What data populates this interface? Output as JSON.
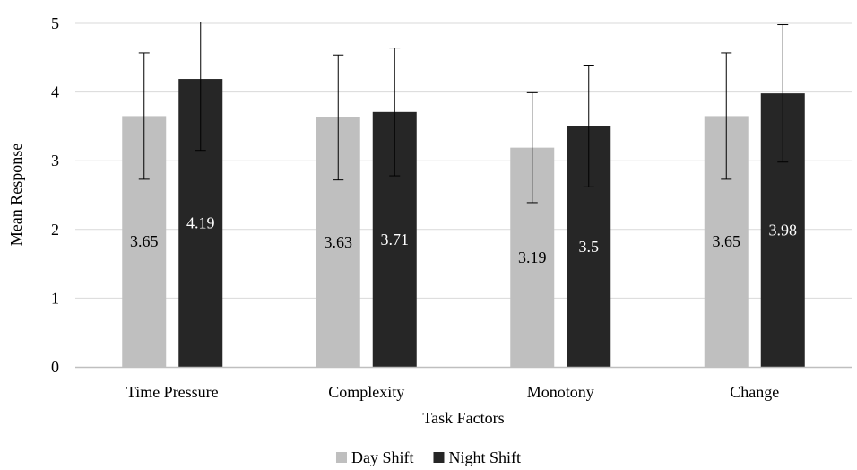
{
  "chart_data": {
    "type": "bar",
    "xlabel": "Task Factors",
    "ylabel": "Mean Response",
    "ylim": [
      0,
      5
    ],
    "yticks": [
      "0",
      "1",
      "2",
      "3",
      "4",
      "5"
    ],
    "grid": true,
    "legend_position": "bottom",
    "categories": [
      "Time Pressure",
      "Complexity",
      "Monotony",
      "Change"
    ],
    "series": [
      {
        "name": "Day Shift",
        "color": "#bfbfbf",
        "label_color": "#000000",
        "values": [
          3.65,
          3.63,
          3.19,
          3.65
        ],
        "labels": [
          "3.65",
          "3.63",
          "3.19",
          "3.65"
        ],
        "error_low": [
          2.73,
          2.72,
          2.39,
          2.73
        ],
        "error_high": [
          4.57,
          4.54,
          3.99,
          4.57
        ]
      },
      {
        "name": "Night Shift",
        "color": "#262626",
        "label_color": "#ffffff",
        "values": [
          4.19,
          3.71,
          3.5,
          3.98
        ],
        "labels": [
          "4.19",
          "3.71",
          "3.5",
          "3.98"
        ],
        "error_low": [
          3.15,
          2.78,
          2.62,
          2.98
        ],
        "error_high": [
          5.23,
          4.64,
          4.38,
          4.98
        ]
      }
    ]
  }
}
